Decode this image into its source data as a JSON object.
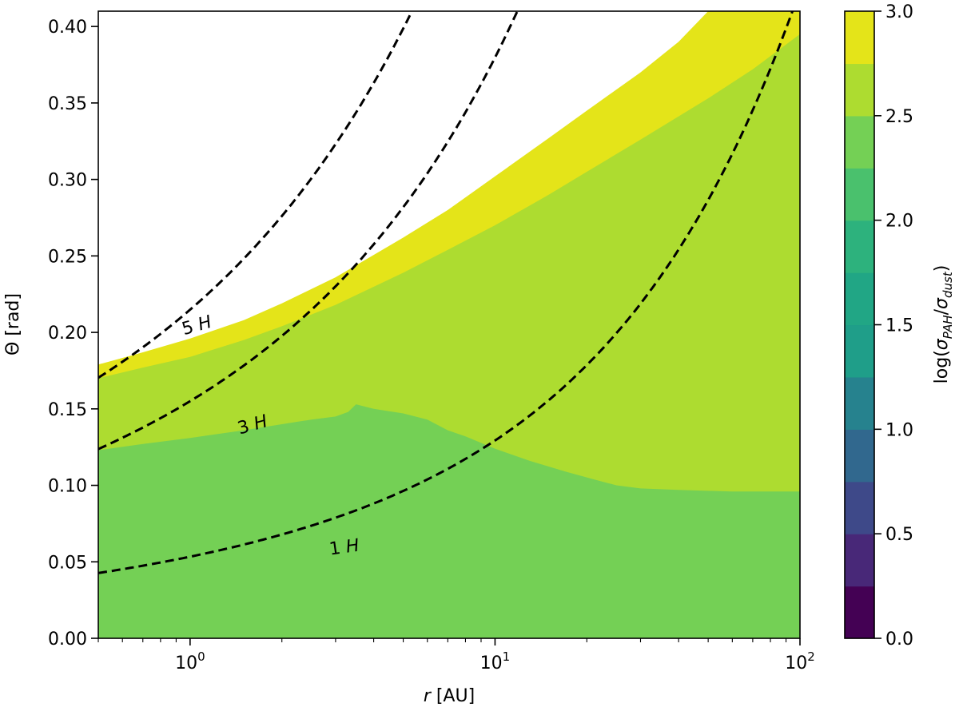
{
  "chart_data": {
    "type": "contourf",
    "title": "",
    "xlabel_var": "r",
    "xlabel_unit": " [AU]",
    "ylabel": "Θ [rad]",
    "x_scale": "log",
    "xlim": [
      0.5,
      100
    ],
    "ylim": [
      0.0,
      0.41
    ],
    "x_major_ticks": [
      {
        "base": "10",
        "exp": "0",
        "value": 1
      },
      {
        "base": "10",
        "exp": "1",
        "value": 10
      },
      {
        "base": "10",
        "exp": "2",
        "value": 100
      }
    ],
    "y_ticks": [
      {
        "value": 0.0,
        "label": "0.00"
      },
      {
        "value": 0.05,
        "label": "0.05"
      },
      {
        "value": 0.1,
        "label": "0.10"
      },
      {
        "value": 0.15,
        "label": "0.15"
      },
      {
        "value": 0.2,
        "label": "0.20"
      },
      {
        "value": 0.25,
        "label": "0.25"
      },
      {
        "value": 0.3,
        "label": "0.30"
      },
      {
        "value": 0.35,
        "label": "0.35"
      },
      {
        "value": 0.4,
        "label": "0.40"
      }
    ],
    "grid": false,
    "regions": [
      {
        "level": "2.25-2.5",
        "color": "#74d055",
        "top_boundary": [
          [
            0.5,
            0.123
          ],
          [
            0.7,
            0.127
          ],
          [
            1.0,
            0.131
          ],
          [
            1.5,
            0.136
          ],
          [
            2.0,
            0.14
          ],
          [
            2.5,
            0.143
          ],
          [
            3.0,
            0.145
          ],
          [
            3.3,
            0.148
          ],
          [
            3.5,
            0.153
          ],
          [
            4.0,
            0.15
          ],
          [
            5.0,
            0.147
          ],
          [
            6.0,
            0.143
          ],
          [
            7.0,
            0.136
          ],
          [
            8.0,
            0.132
          ],
          [
            10.0,
            0.124
          ],
          [
            13.0,
            0.116
          ],
          [
            17.0,
            0.109
          ],
          [
            21.0,
            0.104
          ],
          [
            25.0,
            0.1
          ],
          [
            30.0,
            0.098
          ],
          [
            40.0,
            0.097
          ],
          [
            60.0,
            0.096
          ],
          [
            100.0,
            0.096
          ]
        ]
      },
      {
        "level": "2.5-2.75",
        "color": "#addc30",
        "top_boundary": [
          [
            0.5,
            0.17
          ],
          [
            0.7,
            0.177
          ],
          [
            1.0,
            0.184
          ],
          [
            1.5,
            0.195
          ],
          [
            2.0,
            0.204
          ],
          [
            3.0,
            0.218
          ],
          [
            5.0,
            0.239
          ],
          [
            7.0,
            0.254
          ],
          [
            10.0,
            0.27
          ],
          [
            15.0,
            0.29
          ],
          [
            20.0,
            0.305
          ],
          [
            30.0,
            0.326
          ],
          [
            50.0,
            0.353
          ],
          [
            70.0,
            0.372
          ],
          [
            100.0,
            0.395
          ]
        ]
      },
      {
        "level": "2.75-3.0",
        "color": "#e4e419",
        "top_boundary": [
          [
            0.5,
            0.179
          ],
          [
            0.7,
            0.187
          ],
          [
            1.0,
            0.196
          ],
          [
            1.5,
            0.208
          ],
          [
            2.0,
            0.219
          ],
          [
            3.0,
            0.236
          ],
          [
            5.0,
            0.262
          ],
          [
            7.0,
            0.28
          ],
          [
            10.0,
            0.302
          ],
          [
            15.0,
            0.327
          ],
          [
            20.0,
            0.345
          ],
          [
            30.0,
            0.37
          ],
          [
            40.0,
            0.39
          ],
          [
            50.0,
            0.41
          ],
          [
            100.0,
            0.41
          ]
        ]
      }
    ],
    "contour_lines": [
      {
        "label": "5 H",
        "base": 0.173,
        "coef": 0.04185,
        "label_at": {
          "r": 1.05,
          "theta": 0.205,
          "angle": -16
        }
      },
      {
        "label": "3 H",
        "base": 0.128,
        "coef": 0.02705,
        "label_at": {
          "r": 1.6,
          "theta": 0.14,
          "angle": -16
        }
      },
      {
        "label": "1 H",
        "base": 0.0444,
        "coef": 0.00896,
        "label_at": {
          "r": 3.2,
          "theta": 0.06,
          "angle": -8
        }
      }
    ],
    "colorbar": {
      "label": "log(σPAH/σdust)",
      "label_main": "log(",
      "label_sigma": "σ",
      "label_sub1": "PAH",
      "label_slash": "/",
      "label_sub2": "dust",
      "label_close": ")",
      "range": [
        0.0,
        3.0
      ],
      "ticks": [
        {
          "value": 0.0,
          "label": "0.0"
        },
        {
          "value": 0.5,
          "label": "0.5"
        },
        {
          "value": 1.0,
          "label": "1.0"
        },
        {
          "value": 1.5,
          "label": "1.5"
        },
        {
          "value": 2.0,
          "label": "2.0"
        },
        {
          "value": 2.5,
          "label": "2.5"
        },
        {
          "value": 3.0,
          "label": "3.0"
        }
      ],
      "bands": [
        {
          "from": 0.0,
          "to": 0.25,
          "color": "#440154"
        },
        {
          "from": 0.25,
          "to": 0.5,
          "color": "#482878"
        },
        {
          "from": 0.5,
          "to": 0.75,
          "color": "#3e4989"
        },
        {
          "from": 0.75,
          "to": 1.0,
          "color": "#31688e"
        },
        {
          "from": 1.0,
          "to": 1.25,
          "color": "#26828e"
        },
        {
          "from": 1.25,
          "to": 1.5,
          "color": "#1f9e89"
        },
        {
          "from": 1.5,
          "to": 1.75,
          "color": "#21a685"
        },
        {
          "from": 1.75,
          "to": 2.0,
          "color": "#2db27d"
        },
        {
          "from": 2.0,
          "to": 2.25,
          "color": "#4ac16d"
        },
        {
          "from": 2.25,
          "to": 2.5,
          "color": "#74d055"
        },
        {
          "from": 2.5,
          "to": 2.75,
          "color": "#addc30"
        },
        {
          "from": 2.75,
          "to": 3.0,
          "color": "#e4e419"
        }
      ]
    }
  }
}
